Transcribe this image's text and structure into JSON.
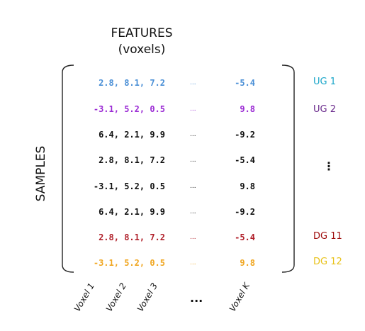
{
  "header": {
    "line1": "FEATURES",
    "line2": "(voxels)"
  },
  "side_label": "SAMPLES",
  "ellipsis": "...",
  "vertical_ellipsis": "⋮",
  "rows": [
    {
      "vals": "2.8, 8.1, 7.2",
      "last": "-5.4",
      "color": "#4a8fd6"
    },
    {
      "vals": "-3.1, 5.2, 0.5",
      "last": "9.8",
      "color": "#9b2bd4"
    },
    {
      "vals": "6.4, 2.1, 9.9",
      "last": "-9.2",
      "color": "#111111"
    },
    {
      "vals": "2.8, 8.1, 7.2",
      "last": "-5.4",
      "color": "#111111"
    },
    {
      "vals": "-3.1, 5.2, 0.5",
      "last": "9.8",
      "color": "#111111"
    },
    {
      "vals": "6.4, 2.1, 9.9",
      "last": "-9.2",
      "color": "#111111"
    },
    {
      "vals": "2.8, 8.1, 7.2",
      "last": "-5.4",
      "color": "#b0202a"
    },
    {
      "vals": "-3.1, 5.2, 0.5",
      "last": "9.8",
      "color": "#f0a722"
    }
  ],
  "group_labels": [
    {
      "text": "UG 1",
      "color": "#1aa6c9"
    },
    {
      "text": "UG 2",
      "color": "#6a2a8c"
    },
    {
      "text": "DG 11",
      "color": "#a01010"
    },
    {
      "text": "DG 12",
      "color": "#e8c21a"
    }
  ],
  "x_labels": [
    "Voxel 1",
    "Voxel 2",
    "Voxel 3",
    "Voxel K"
  ],
  "x_ellipsis": "..."
}
